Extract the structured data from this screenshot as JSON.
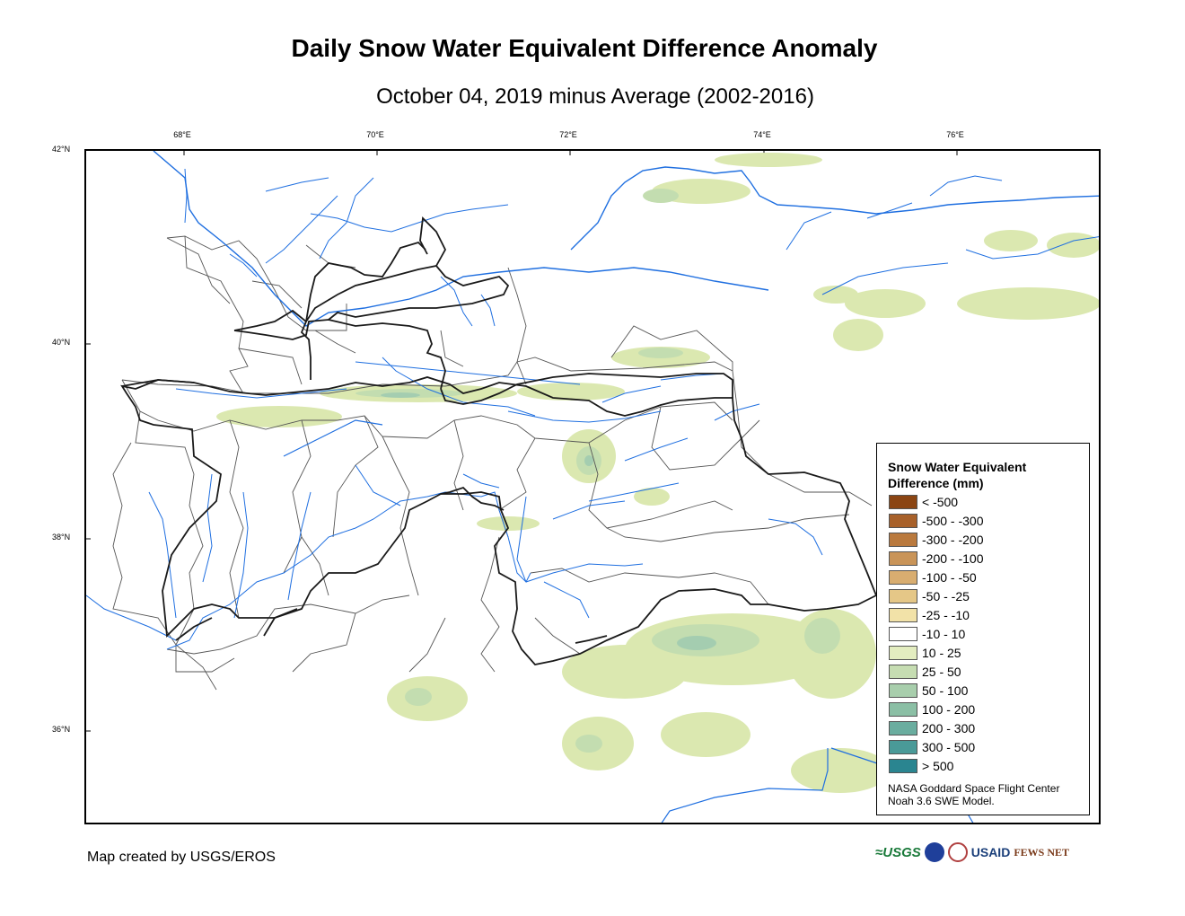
{
  "title": "Daily Snow Water Equivalent Difference Anomaly",
  "subtitle": "October 04, 2019 minus Average (2002-2016)",
  "map": {
    "lon_labels": [
      {
        "text": "68°E",
        "lon": 68
      },
      {
        "text": "70°E",
        "lon": 70
      },
      {
        "text": "72°E",
        "lon": 72
      },
      {
        "text": "74°E",
        "lon": 74
      },
      {
        "text": "76°E",
        "lon": 76
      }
    ],
    "lat_labels": [
      {
        "text": "42°N",
        "lat": 42
      },
      {
        "text": "40°N",
        "lat": 40
      },
      {
        "text": "38°N",
        "lat": 38
      },
      {
        "text": "36°N",
        "lat": 36
      }
    ],
    "colors": {
      "border": "#1a1a1a",
      "basin": "#555555",
      "river": "#1f6fe0",
      "snow_light": "#dbe8b0",
      "snow_mid": "#c3ddb0",
      "snow_dark": "#a4cdb0"
    }
  },
  "legend": {
    "title_line1": "Snow Water Equivalent",
    "title_line2": "Difference (mm)",
    "items": [
      {
        "label": "< -500",
        "color": "#8b4513"
      },
      {
        "label": "-500 - -300",
        "color": "#a8612a"
      },
      {
        "label": "-300 - -200",
        "color": "#ba7a3e"
      },
      {
        "label": "-200 - -100",
        "color": "#c99458"
      },
      {
        "label": "-100 - -50",
        "color": "#d8ad70"
      },
      {
        "label": "-50 - -25",
        "color": "#e5c787"
      },
      {
        "label": "-25 - -10",
        "color": "#f2e2a8"
      },
      {
        "label": "-10 - 10",
        "color": "#ffffff"
      },
      {
        "label": "10 - 25",
        "color": "#e3edc0"
      },
      {
        "label": "25 - 50",
        "color": "#c6ddb2"
      },
      {
        "label": "50 - 100",
        "color": "#a8ceac"
      },
      {
        "label": "100 - 200",
        "color": "#8bbfa5"
      },
      {
        "label": "200 - 300",
        "color": "#6aad9f"
      },
      {
        "label": "300 - 500",
        "color": "#4a9a98"
      },
      {
        "label": "> 500",
        "color": "#2a8590"
      }
    ],
    "credit_line1": "NASA Goddard Space Flight Center",
    "credit_line2": "Noah 3.6 SWE Model."
  },
  "credit": "Map created by USGS/EROS",
  "logos": {
    "usgs": "≈USGS",
    "usaid": "USAID",
    "fews": "FEWS NET"
  }
}
